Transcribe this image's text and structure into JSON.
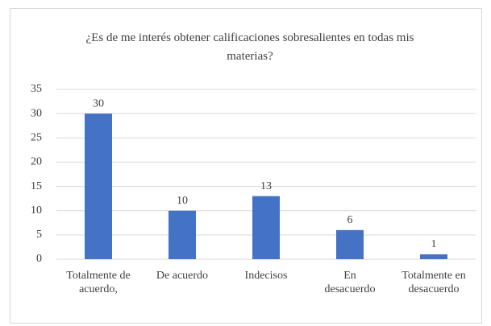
{
  "chart_data": {
    "type": "bar",
    "title": "¿Es de me interés obtener calificaciones sobresalientes en todas mis materias?",
    "categories": [
      "Totalmente de acuerdo,",
      "De acuerdo",
      "Indecisos",
      "En desacuerdo",
      "Totalmente en desacuerdo"
    ],
    "values": [
      30,
      10,
      13,
      6,
      1
    ],
    "color": "#4472c4",
    "ylim": [
      0,
      35
    ],
    "yticks": [
      0,
      5,
      10,
      15,
      20,
      25,
      30,
      35
    ],
    "grid": true
  }
}
